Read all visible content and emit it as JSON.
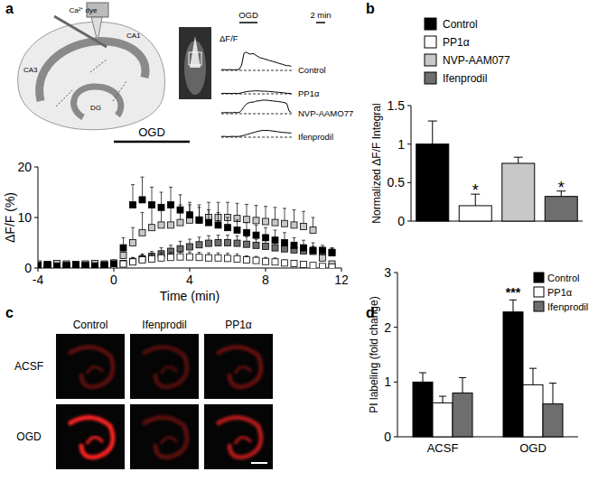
{
  "chart_data": [
    {
      "type": "line",
      "x": [
        -4,
        -3.5,
        -3,
        -2.5,
        -2,
        -1.5,
        -1,
        -0.5,
        0,
        0.5,
        1,
        1.5,
        2,
        2.5,
        3,
        3.5,
        4,
        4.5,
        5,
        5.5,
        6,
        6.5,
        7,
        7.5,
        8,
        8.5,
        9,
        9.5,
        10,
        10.5,
        11,
        11.5
      ],
      "xlim": [
        -4,
        12
      ],
      "xticks": [
        -4,
        0,
        4,
        8,
        12
      ],
      "ylim": [
        0,
        20
      ],
      "yticks": [
        0,
        10,
        20
      ],
      "x_label": "Time (min)",
      "y_label": "ΔF/F (%)",
      "marker": "square",
      "line_style": "none",
      "series": [
        {
          "name": "Control",
          "color": "#000000",
          "values": [
            0.5,
            0.6,
            0.4,
            0.5,
            0.6,
            0.5,
            0.4,
            0.6,
            0.8,
            4,
            12.5,
            13.5,
            12.5,
            12,
            12.5,
            11.5,
            10.5,
            9.5,
            9,
            8.5,
            8,
            7.5,
            7,
            6.5,
            6,
            5.5,
            5,
            4.5,
            4,
            3.5,
            3.5,
            3
          ],
          "errors": [
            0.5,
            0.5,
            0.5,
            0.5,
            0.5,
            0.5,
            0.5,
            0.5,
            0.5,
            2,
            4,
            4.5,
            3.5,
            3,
            3.5,
            3,
            2.5,
            2.5,
            2.5,
            2.5,
            2,
            2,
            2,
            2,
            2,
            2,
            2,
            1.5,
            1.5,
            1.5,
            1,
            1
          ]
        },
        {
          "name": "PP1α",
          "color": "#ffffff",
          "values": [
            0.3,
            0.4,
            0.3,
            0.4,
            0.3,
            0.3,
            0.4,
            0.3,
            0.4,
            0.8,
            1.2,
            1.6,
            1.8,
            2,
            2.1,
            2.2,
            2.2,
            2.1,
            2,
            2,
            1.9,
            1.8,
            1.6,
            1.5,
            1.3,
            1.2,
            1,
            0.9,
            0.7,
            0.5,
            0.3,
            0.2
          ],
          "errors": [
            0.3,
            0.3,
            0.3,
            0.3,
            0.3,
            0.3,
            0.3,
            0.3,
            0.4,
            0.6,
            0.8,
            1,
            1,
            1,
            1,
            1,
            1,
            1,
            1,
            1,
            1,
            1,
            0.8,
            0.8,
            0.8,
            0.8,
            0.6,
            0.6,
            0.5,
            0.5,
            0.4,
            0.3
          ]
        },
        {
          "name": "NVP-AAMO77",
          "color": "#c8c8c8",
          "values": [
            0.8,
            0.7,
            0.9,
            0.8,
            0.7,
            0.8,
            0.9,
            0.8,
            1,
            2.5,
            5,
            7,
            8,
            8.5,
            8.5,
            9,
            9.5,
            9.5,
            10,
            10,
            10,
            9.8,
            9.6,
            9.4,
            9.2,
            9,
            8.8,
            8.5,
            8.2,
            7.5,
            2,
            0.8
          ],
          "errors": [
            0.5,
            0.5,
            0.5,
            0.5,
            0.5,
            0.5,
            0.5,
            0.5,
            0.6,
            1.5,
            3,
            4,
            4,
            3.5,
            3.5,
            3.5,
            3,
            3,
            3,
            3,
            3,
            3,
            3,
            3,
            3,
            3,
            3,
            3,
            3,
            2.5,
            1,
            0.5
          ]
        },
        {
          "name": "Ifenprodil",
          "color": "#6e6e6e",
          "values": [
            0.5,
            0.6,
            0.5,
            0.4,
            0.5,
            0.6,
            0.5,
            0.5,
            0.6,
            0.9,
            1.3,
            1.8,
            2.3,
            2.8,
            3.3,
            3.8,
            4.2,
            4.6,
            4.9,
            5,
            5,
            4.9,
            4.7,
            4.5,
            4.3,
            4,
            3.8,
            3.6,
            3.4,
            3.3,
            3.2,
            3.1
          ],
          "errors": [
            0.4,
            0.4,
            0.4,
            0.4,
            0.4,
            0.4,
            0.4,
            0.4,
            0.5,
            0.6,
            0.8,
            1,
            1,
            1.2,
            1.2,
            1.5,
            1.5,
            1.5,
            1.5,
            1.5,
            1.5,
            1.5,
            1.5,
            1.2,
            1.2,
            1.2,
            1,
            1,
            1,
            1,
            0.8,
            0.8
          ]
        }
      ],
      "annotations": [
        {
          "text": "OGD",
          "x0": 0,
          "x1": 4
        }
      ],
      "inset": {
        "y_label": "ΔF/F",
        "scale_bar": {
          "value": 2,
          "label": "2 min"
        }
      }
    },
    {
      "type": "bar",
      "categories": [
        "Control",
        "PP1α",
        "NVP-AAM077",
        "Ifenprodil"
      ],
      "values": [
        1,
        0.2,
        0.75,
        0.32
      ],
      "errors": [
        0.3,
        0.15,
        0.08,
        0.07
      ],
      "colors": [
        "#000000",
        "#ffffff",
        "#c8c8c8",
        "#6e6e6e"
      ],
      "ylim": [
        0,
        1.5
      ],
      "yticks": [
        0,
        0.5,
        1,
        1.5
      ],
      "y_label": "Normalized ΔF/F Integral",
      "legend": "top",
      "tick_labels": "y",
      "annotations": [
        {
          "text": "*",
          "category": 1
        },
        {
          "text": "*",
          "category": 3
        }
      ]
    },
    {
      "type": "bar",
      "categories": [
        "ACSF",
        "OGD"
      ],
      "series": [
        {
          "name": "Control",
          "color": "#000000",
          "values": [
            1,
            2.28
          ],
          "errors": [
            0.17,
            0.22
          ]
        },
        {
          "name": "PP1α",
          "color": "#ffffff",
          "values": [
            0.62,
            0.95
          ],
          "errors": [
            0.12,
            0.3
          ]
        },
        {
          "name": "Ifenprodil",
          "color": "#6e6e6e",
          "values": [
            0.8,
            0.6
          ],
          "errors": [
            0.28,
            0.38
          ]
        }
      ],
      "ylim": [
        0,
        3
      ],
      "yticks": [
        0,
        1,
        2,
        3
      ],
      "y_label": "PI labeling (fold change)",
      "legend": "top-right",
      "annotations": [
        {
          "text": "***",
          "category": 1,
          "series": 0
        }
      ]
    }
  ],
  "figure": {
    "panel_labels": [
      "a",
      "b",
      "c",
      "d"
    ],
    "schematic": {
      "labels": [
        "Ca²⁺ dye",
        "CA1",
        "CA3",
        "DG"
      ]
    },
    "images": {
      "columns": [
        "Control",
        "Ifenprodil",
        "PP1α"
      ],
      "rows": [
        "ACSF",
        "OGD"
      ]
    }
  }
}
